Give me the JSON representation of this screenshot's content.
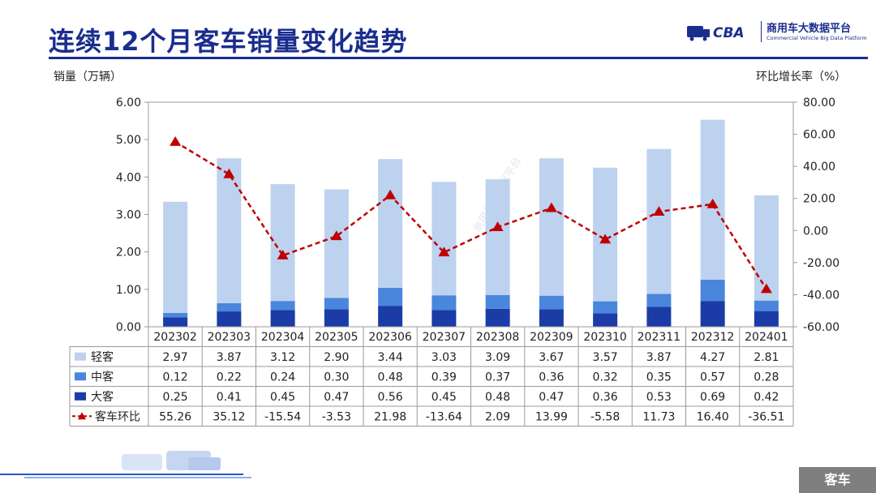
{
  "title": "连续12个月客车销量变化趋势",
  "logo": {
    "cn": "商用车大数据平台",
    "en": "Commercial Vehicle Big Data Platform",
    "mark": "CBA"
  },
  "watermark": "商用车大数据平台",
  "ylabel_left": "销量（万辆）",
  "ylabel_right": "环比增长率（%）",
  "footer_tag": "客车",
  "colors": {
    "light": "#bdd2ef",
    "mid": "#4a86dc",
    "large": "#1b3ba6",
    "line": "#c00000",
    "title": "#1a2d8f"
  },
  "chart_data": {
    "type": "bar",
    "stacked": true,
    "categories": [
      "202302",
      "202303",
      "202304",
      "202305",
      "202306",
      "202307",
      "202308",
      "202309",
      "202310",
      "202311",
      "202312",
      "202401"
    ],
    "series": [
      {
        "name": "大客",
        "values": [
          0.25,
          0.41,
          0.45,
          0.47,
          0.56,
          0.45,
          0.48,
          0.47,
          0.36,
          0.53,
          0.69,
          0.42
        ]
      },
      {
        "name": "中客",
        "values": [
          0.12,
          0.22,
          0.24,
          0.3,
          0.48,
          0.39,
          0.37,
          0.36,
          0.32,
          0.35,
          0.57,
          0.28
        ]
      },
      {
        "name": "轻客",
        "values": [
          2.97,
          3.87,
          3.12,
          2.9,
          3.44,
          3.03,
          3.09,
          3.67,
          3.57,
          3.87,
          4.27,
          2.81
        ]
      }
    ],
    "line": {
      "name": "客车环比",
      "type": "line",
      "axis": "right",
      "values": [
        55.26,
        35.12,
        -15.54,
        -3.53,
        21.98,
        -13.64,
        2.09,
        13.99,
        -5.58,
        11.73,
        16.4,
        -36.51
      ]
    },
    "y_left": {
      "lim": [
        0,
        6
      ],
      "ticks": [
        "0.00",
        "1.00",
        "2.00",
        "3.00",
        "4.00",
        "5.00",
        "6.00"
      ]
    },
    "y_right": {
      "lim": [
        -60,
        80
      ],
      "ticks": [
        "-60.00",
        "-40.00",
        "-20.00",
        "0.00",
        "20.00",
        "40.00",
        "60.00",
        "80.00"
      ]
    },
    "table_rows": [
      {
        "name": "轻客",
        "values": [
          "2.97",
          "3.87",
          "3.12",
          "2.90",
          "3.44",
          "3.03",
          "3.09",
          "3.67",
          "3.57",
          "3.87",
          "4.27",
          "2.81"
        ]
      },
      {
        "name": "中客",
        "values": [
          "0.12",
          "0.22",
          "0.24",
          "0.30",
          "0.48",
          "0.39",
          "0.37",
          "0.36",
          "0.32",
          "0.35",
          "0.57",
          "0.28"
        ]
      },
      {
        "name": "大客",
        "values": [
          "0.25",
          "0.41",
          "0.45",
          "0.47",
          "0.56",
          "0.45",
          "0.48",
          "0.47",
          "0.36",
          "0.53",
          "0.69",
          "0.42"
        ]
      },
      {
        "name": "客车环比",
        "values": [
          "55.26",
          "35.12",
          "-15.54",
          "-3.53",
          "21.98",
          "-13.64",
          "2.09",
          "13.99",
          "-5.58",
          "11.73",
          "16.40",
          "-36.51"
        ]
      }
    ],
    "grid": false,
    "legend": "data-table"
  }
}
